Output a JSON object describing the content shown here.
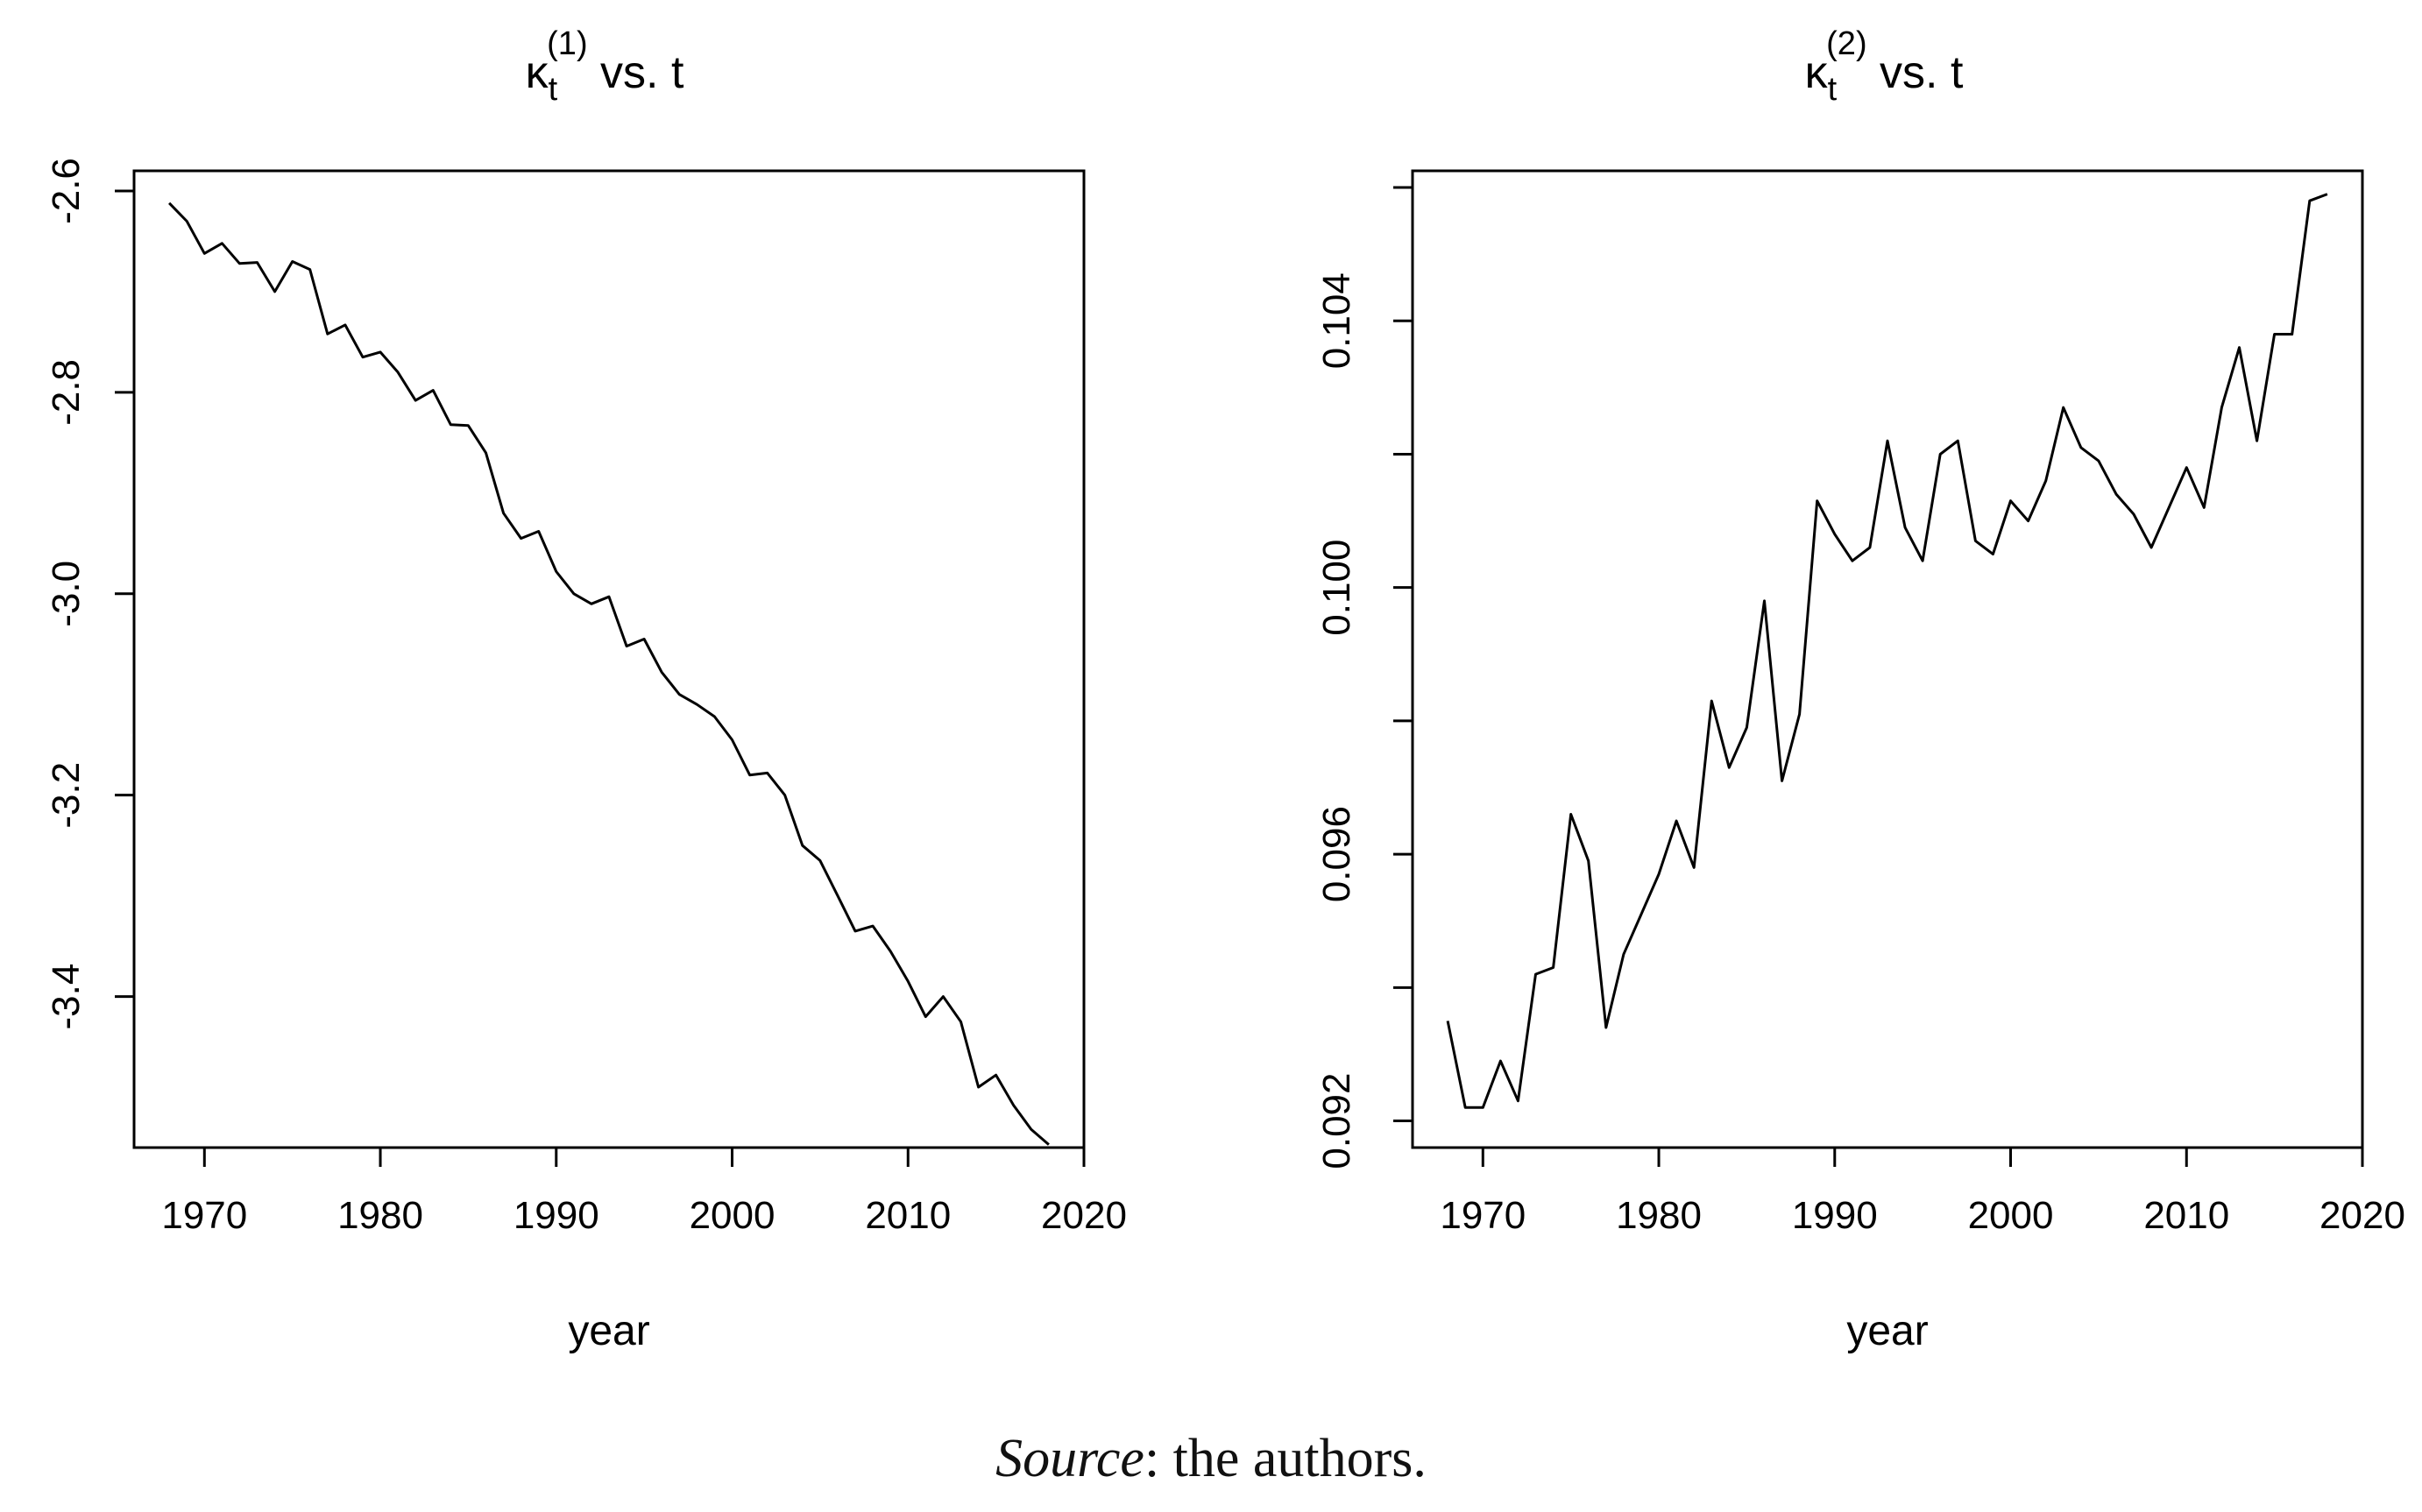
{
  "chart_data": [
    {
      "type": "line",
      "title_symbol": "κ",
      "title_sub": "t",
      "title_sup": "(1)",
      "title_rest": " vs. t",
      "xlabel": "year",
      "ylabel": "",
      "xlim": [
        1966,
        2020
      ],
      "ylim": [
        -3.55,
        -2.58
      ],
      "x_ticks": [
        1970,
        1980,
        1990,
        2000,
        2010,
        2020
      ],
      "y_ticks": [
        -2.6,
        -2.8,
        -3.0,
        -3.2,
        -3.4
      ],
      "y_tick_labels": [
        "-2.6",
        "-2.8",
        "-3.0",
        "-3.2",
        "-3.4"
      ],
      "grid": false,
      "series": [
        {
          "x": [
            1968,
            1969,
            1970,
            1971,
            1972,
            1973,
            1974,
            1975,
            1976,
            1977,
            1978,
            1979,
            1980,
            1981,
            1982,
            1983,
            1984,
            1985,
            1986,
            1987,
            1988,
            1989,
            1990,
            1991,
            1992,
            1993,
            1994,
            1995,
            1996,
            1997,
            1998,
            1999,
            2000,
            2001,
            2002,
            2003,
            2004,
            2005,
            2006,
            2007,
            2008,
            2009,
            2010,
            2011,
            2012,
            2013,
            2014,
            2015,
            2016,
            2017,
            2018
          ],
          "values": [
            -2.612,
            -2.63,
            -2.662,
            -2.652,
            -2.672,
            -2.671,
            -2.7,
            -2.67,
            -2.678,
            -2.742,
            -2.733,
            -2.765,
            -2.76,
            -2.78,
            -2.808,
            -2.798,
            -2.832,
            -2.833,
            -2.86,
            -2.92,
            -2.945,
            -2.938,
            -2.978,
            -3.0,
            -3.01,
            -3.003,
            -3.052,
            -3.045,
            -3.078,
            -3.1,
            -3.11,
            -3.122,
            -3.145,
            -3.18,
            -3.178,
            -3.2,
            -3.25,
            -3.265,
            -3.3,
            -3.335,
            -3.33,
            -3.355,
            -3.385,
            -3.42,
            -3.4,
            -3.425,
            -3.49,
            -3.478,
            -3.508,
            -3.532,
            -3.547
          ]
        }
      ]
    },
    {
      "type": "line",
      "title_symbol": "κ",
      "title_sub": "t",
      "title_sup": "(2)",
      "title_rest": " vs. t",
      "xlabel": "year",
      "ylabel": "",
      "xlim": [
        1966,
        2020
      ],
      "ylim": [
        0.0916,
        0.10625
      ],
      "x_ticks": [
        1970,
        1980,
        1990,
        2000,
        2010,
        2020
      ],
      "y_ticks": [
        0.092,
        0.094,
        0.096,
        0.098,
        0.1,
        0.102,
        0.104,
        0.106
      ],
      "y_tick_labels": [
        "0.092",
        "",
        "0.096",
        "",
        "0.100",
        "",
        "0.104",
        ""
      ],
      "grid": false,
      "series": [
        {
          "x": [
            1968,
            1969,
            1970,
            1971,
            1972,
            1973,
            1974,
            1975,
            1976,
            1977,
            1978,
            1979,
            1980,
            1981,
            1982,
            1983,
            1984,
            1985,
            1986,
            1987,
            1988,
            1989,
            1990,
            1991,
            1992,
            1993,
            1994,
            1995,
            1996,
            1997,
            1998,
            1999,
            2000,
            2001,
            2002,
            2003,
            2004,
            2005,
            2006,
            2007,
            2008,
            2009,
            2010,
            2011,
            2012,
            2013,
            2014,
            2015,
            2016,
            2017,
            2018
          ],
          "values": [
            0.0935,
            0.0922,
            0.0922,
            0.0929,
            0.0923,
            0.0942,
            0.0943,
            0.0966,
            0.0959,
            0.0934,
            0.0945,
            0.0951,
            0.0957,
            0.0965,
            0.0958,
            0.0983,
            0.0973,
            0.0979,
            0.0998,
            0.0971,
            0.0981,
            0.1013,
            0.1008,
            0.1004,
            0.1006,
            0.1022,
            0.1009,
            0.1004,
            0.102,
            0.1022,
            0.1007,
            0.1005,
            0.1013,
            0.101,
            0.1016,
            0.1027,
            0.1021,
            0.1019,
            0.1014,
            0.1011,
            0.1006,
            0.1012,
            0.1018,
            0.1012,
            0.1027,
            0.1036,
            0.1022,
            0.1038,
            0.1038,
            0.1058,
            0.1059
          ]
        }
      ]
    }
  ],
  "caption": {
    "source_label": "Source",
    "source_text": ": the authors."
  }
}
